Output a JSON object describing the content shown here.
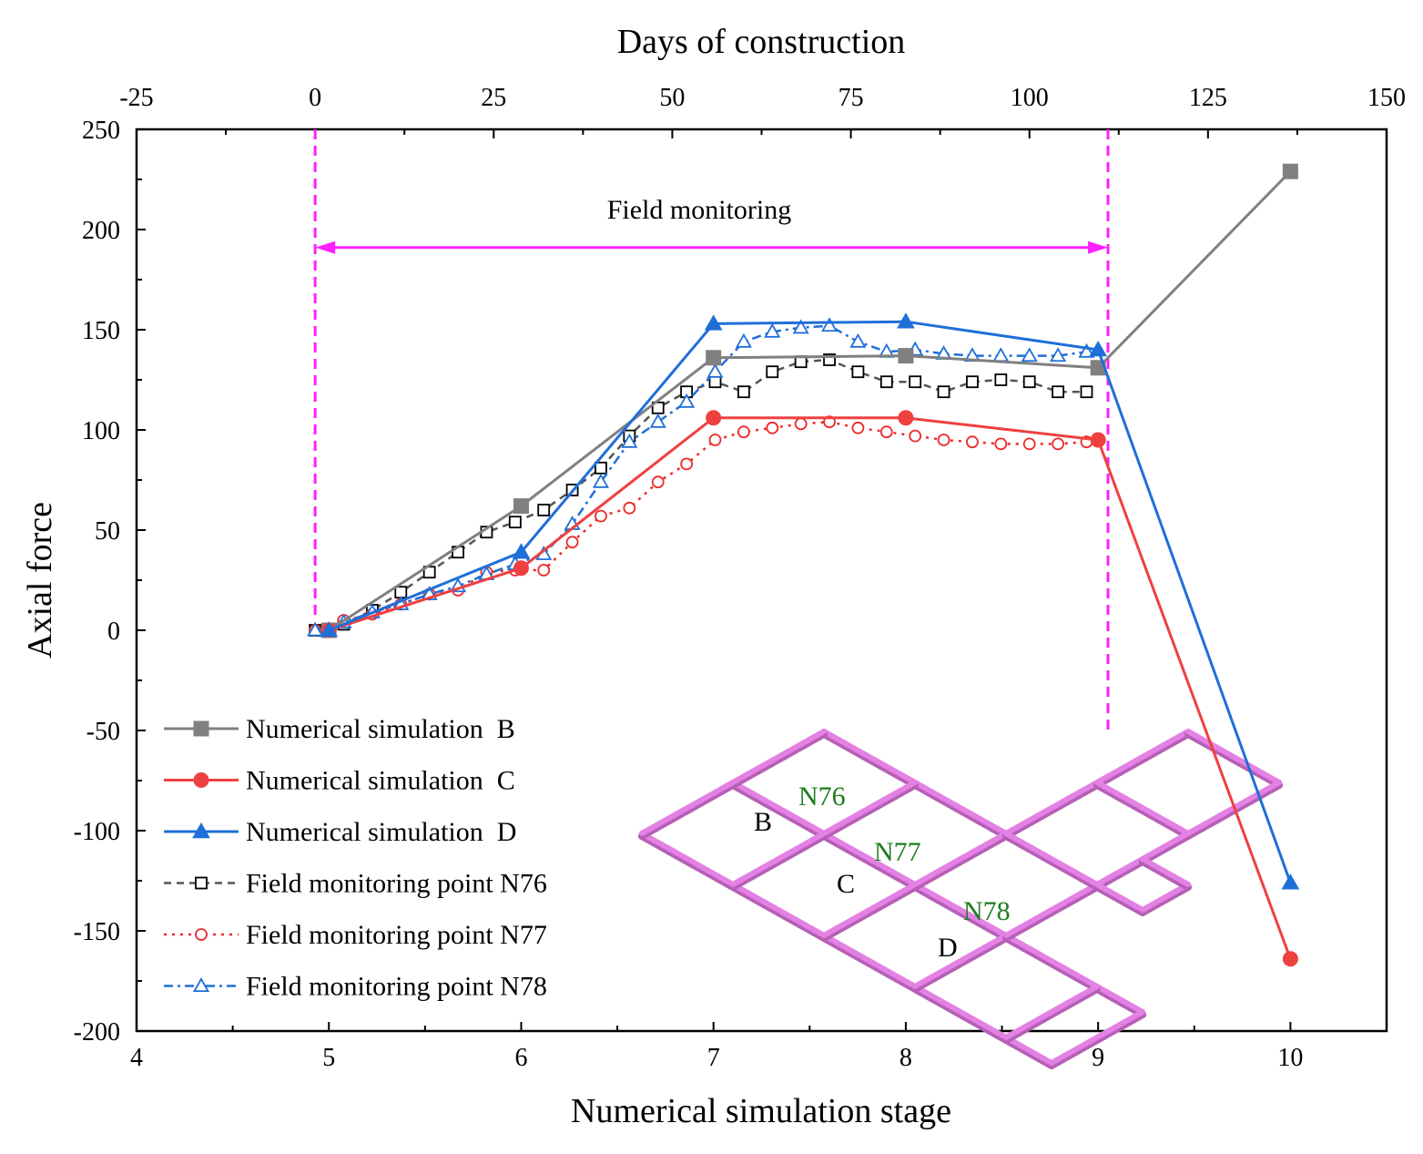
{
  "colors": {
    "B": "#808080",
    "C": "#ef4040",
    "D": "#1f6fd8",
    "N76": "#555555",
    "N77": "#ee2a2a",
    "N78": "#1f6fd8",
    "field_marker": "#ff1fff",
    "grid_inset": "#e481e4",
    "grid_inset_dark": "#b65fb6",
    "label_green": "#1e7c1e"
  },
  "chart_data": {
    "type": "line",
    "title": "",
    "xlabel": "Numerical simulation stage",
    "ylabel": "Axial force",
    "x2label": "Days of construction",
    "xlim": [
      4,
      10.5
    ],
    "ylim": [
      -200,
      250
    ],
    "x2lim": [
      -25,
      150
    ],
    "x_ticks": [
      "4",
      "5",
      "6",
      "7",
      "8",
      "9",
      "10"
    ],
    "y_ticks": [
      "250",
      "200",
      "150",
      "100",
      "50",
      "0",
      "-50",
      "-100",
      "-150",
      "-200"
    ],
    "x2_ticks": [
      "-25",
      "0",
      "25",
      "50",
      "75",
      "100",
      "125",
      "150"
    ],
    "grid": false,
    "legend_position": "bottom-left",
    "series": [
      {
        "name": "Numerical simulation  B",
        "key": "B",
        "axis": "stage",
        "style": "solid",
        "marker": "square-filled",
        "x": [
          5,
          6,
          7,
          8,
          9,
          10
        ],
        "values": [
          0,
          62,
          136,
          137,
          131,
          229
        ]
      },
      {
        "name": "Numerical simulation  C",
        "key": "C",
        "axis": "stage",
        "style": "solid",
        "marker": "circle-filled",
        "x": [
          5,
          6,
          7,
          8,
          9,
          10
        ],
        "values": [
          0,
          31,
          106,
          106,
          95,
          -164
        ]
      },
      {
        "name": "Numerical simulation  D",
        "key": "D",
        "axis": "stage",
        "style": "solid",
        "marker": "triangle-filled",
        "x": [
          5,
          6,
          7,
          8,
          9,
          10
        ],
        "values": [
          0,
          39,
          153,
          154,
          140,
          -126
        ]
      },
      {
        "name": "Field monitoring point N76",
        "key": "N76",
        "axis": "days",
        "style": "dash",
        "marker": "square-open",
        "x": [
          0,
          4,
          8,
          12,
          16,
          20,
          24,
          28,
          32,
          36,
          40,
          44,
          48,
          52,
          56,
          60,
          64,
          68,
          72,
          76,
          80,
          84,
          88,
          92,
          96,
          100,
          104,
          108
        ],
        "values": [
          0,
          3,
          10,
          19,
          29,
          39,
          49,
          54,
          60,
          70,
          81,
          97,
          111,
          119,
          124,
          119,
          129,
          134,
          135,
          129,
          124,
          124,
          119,
          124,
          125,
          124,
          119,
          119
        ]
      },
      {
        "name": "Field monitoring point N77",
        "key": "N77",
        "axis": "days",
        "style": "dot",
        "marker": "circle-open",
        "x": [
          0,
          4,
          8,
          12,
          16,
          20,
          24,
          28,
          32,
          36,
          40,
          44,
          48,
          52,
          56,
          60,
          64,
          68,
          72,
          76,
          80,
          84,
          88,
          92,
          96,
          100,
          104,
          108
        ],
        "values": [
          0,
          5,
          8,
          13,
          18,
          20,
          29,
          30,
          30,
          44,
          57,
          61,
          74,
          83,
          95,
          99,
          101,
          103,
          104,
          101,
          99,
          97,
          95,
          94,
          93,
          93,
          93,
          94
        ]
      },
      {
        "name": "Field monitoring point N78",
        "key": "N78",
        "axis": "days",
        "style": "dashdot",
        "marker": "triangle-open",
        "x": [
          0,
          4,
          8,
          12,
          16,
          20,
          24,
          28,
          32,
          36,
          40,
          44,
          48,
          52,
          56,
          60,
          64,
          68,
          72,
          76,
          80,
          84,
          88,
          92,
          96,
          100,
          104,
          108
        ],
        "values": [
          0,
          4,
          9,
          13,
          18,
          22,
          28,
          33,
          38,
          53,
          74,
          94,
          104,
          114,
          129,
          144,
          149,
          151,
          152,
          144,
          139,
          140,
          138,
          137,
          137,
          137,
          137,
          139
        ]
      }
    ],
    "annotations": {
      "field_monitoring": {
        "label": "Field monitoring",
        "x_start": 0,
        "x_end": 111,
        "y": 191,
        "line_top_y": 250,
        "line_bottom_y": -50
      },
      "inset_labels": [
        "B",
        "C",
        "D",
        "N76",
        "N77",
        "N78"
      ]
    }
  }
}
